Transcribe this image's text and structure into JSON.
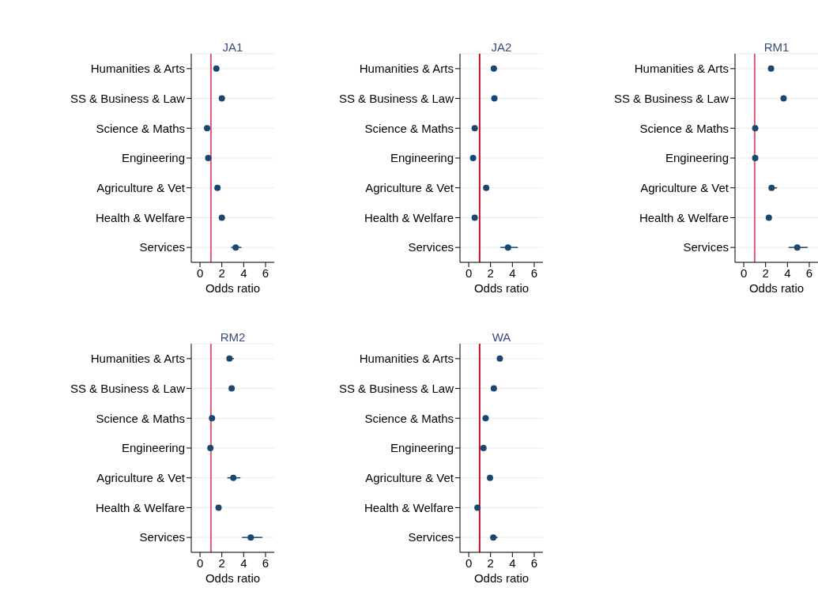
{
  "chart_data": [
    {
      "type": "scatter",
      "orientation": "horizontal",
      "title": "JA1",
      "xlabel": "Odds ratio",
      "categories": [
        "Humanities & Arts",
        "SS & Business & Law",
        "Science & Maths",
        "Engineering",
        "Agriculture & Vet",
        "Health & Welfare",
        "Services"
      ],
      "values": [
        1.5,
        2.0,
        0.65,
        0.75,
        1.6,
        2.0,
        3.27
      ],
      "errors": [
        null,
        null,
        null,
        null,
        null,
        null,
        [
          2.85,
          3.8
        ]
      ],
      "color": "#1a476f",
      "marker": "circle",
      "xlim": [
        -0.8,
        6.8
      ],
      "xticks": [
        0,
        2,
        4,
        6
      ],
      "grid": "y",
      "ref_lines": [
        {
          "axis": "x",
          "value": 1,
          "color": "#d9577a"
        }
      ]
    },
    {
      "type": "scatter",
      "orientation": "horizontal",
      "title": "JA2",
      "xlabel": "Odds ratio",
      "categories": [
        "Humanities & Arts",
        "SS & Business & Law",
        "Science & Maths",
        "Engineering",
        "Agriculture & Vet",
        "Health & Welfare",
        "Services"
      ],
      "values": [
        2.3,
        2.35,
        0.55,
        0.4,
        1.6,
        0.55,
        3.6
      ],
      "errors": [
        [
          2.1,
          2.6
        ],
        null,
        null,
        null,
        null,
        null,
        [
          2.9,
          4.5
        ]
      ],
      "color": "#1a476f",
      "marker": "circle",
      "xlim": [
        -0.8,
        6.8
      ],
      "xticks": [
        0,
        2,
        4,
        6
      ],
      "grid": "y",
      "ref_lines": [
        {
          "axis": "x",
          "value": 1,
          "color": "#c0102e"
        }
      ]
    },
    {
      "type": "scatter",
      "orientation": "horizontal",
      "title": "RM1",
      "xlabel": "Odds ratio",
      "categories": [
        "Humanities & Arts",
        "SS & Business & Law",
        "Science & Maths",
        "Engineering",
        "Agriculture & Vet",
        "Health & Welfare",
        "Services"
      ],
      "values": [
        2.5,
        3.65,
        1.05,
        1.05,
        2.55,
        2.3,
        4.9
      ],
      "errors": [
        null,
        null,
        null,
        null,
        [
          2.3,
          3.05
        ],
        null,
        [
          4.1,
          5.85
        ]
      ],
      "color": "#1a476f",
      "marker": "circle",
      "xlim": [
        -0.8,
        6.8
      ],
      "xticks": [
        0,
        2,
        4,
        6
      ],
      "grid": "y",
      "ref_lines": [
        {
          "axis": "x",
          "value": 1,
          "color": "#d9577a"
        }
      ]
    },
    {
      "type": "scatter",
      "orientation": "horizontal",
      "title": "RM2",
      "xlabel": "Odds ratio",
      "categories": [
        "Humanities & Arts",
        "SS & Business & Law",
        "Science & Maths",
        "Engineering",
        "Agriculture & Vet",
        "Health & Welfare",
        "Services"
      ],
      "values": [
        2.7,
        2.9,
        1.1,
        0.95,
        3.05,
        1.7,
        4.65
      ],
      "errors": [
        [
          2.45,
          3.1
        ],
        null,
        null,
        null,
        [
          2.5,
          3.7
        ],
        null,
        [
          3.85,
          5.7
        ]
      ],
      "color": "#1a476f",
      "marker": "circle",
      "xlim": [
        -0.8,
        6.8
      ],
      "xticks": [
        0,
        2,
        4,
        6
      ],
      "grid": "y",
      "ref_lines": [
        {
          "axis": "x",
          "value": 1,
          "color": "#d9577a"
        }
      ]
    },
    {
      "type": "scatter",
      "orientation": "horizontal",
      "title": "WA",
      "xlabel": "Odds ratio",
      "categories": [
        "Humanities & Arts",
        "SS & Business & Law",
        "Science & Maths",
        "Engineering",
        "Agriculture & Vet",
        "Health & Welfare",
        "Services"
      ],
      "values": [
        2.85,
        2.3,
        1.55,
        1.35,
        1.95,
        0.8,
        2.25
      ],
      "errors": [
        null,
        null,
        null,
        null,
        null,
        null,
        [
          2.0,
          2.65
        ]
      ],
      "color": "#1a476f",
      "marker": "circle",
      "xlim": [
        -0.8,
        6.8
      ],
      "xticks": [
        0,
        2,
        4,
        6
      ],
      "grid": "y",
      "ref_lines": [
        {
          "axis": "x",
          "value": 1,
          "color": "#c0102e"
        }
      ]
    }
  ]
}
